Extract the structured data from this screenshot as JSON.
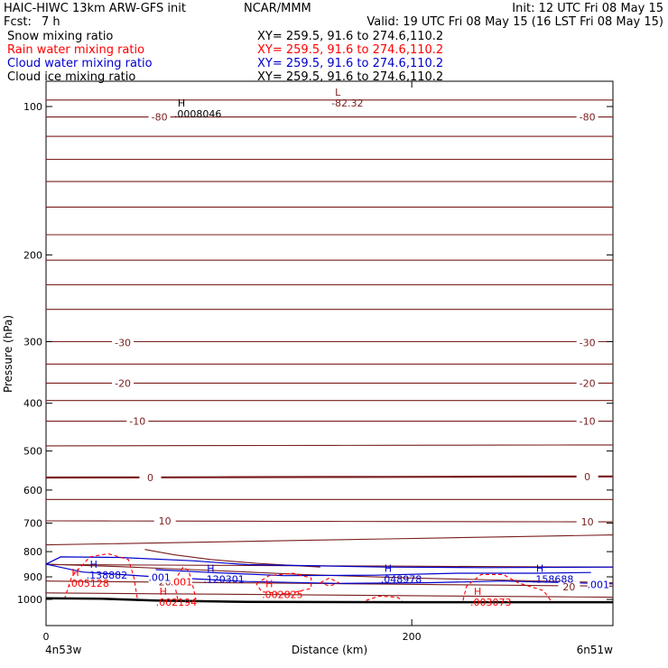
{
  "header": {
    "title": "HAIC-HIWC 13km ARW-GFS init",
    "org": "NCAR/MMM",
    "init": "Init: 12 UTC Fri 08 May 15",
    "fcst_label": "Fcst:",
    "fcst_value": "7 h",
    "valid": "Valid: 19 UTC Fri 08 May 15 (16 LST Fri 08 May 15)"
  },
  "legend": [
    {
      "name": "Snow mixing ratio",
      "xy": "XY= 259.5, 91.6 to 274.6,110.2",
      "color": "#000000"
    },
    {
      "name": "Rain water mixing ratio",
      "xy": "XY= 259.5, 91.6 to 274.6,110.2",
      "color": "#ff0000"
    },
    {
      "name": "Cloud water mixing ratio",
      "xy": "XY= 259.5, 91.6 to 274.6,110.2",
      "color": "#0000cc"
    },
    {
      "name": "Cloud ice mixing ratio",
      "xy": "XY= 259.5, 91.6 to 274.6,110.2",
      "color": "#000000"
    }
  ],
  "colors": {
    "temperature": "#7a1e1e",
    "rain": "#ff0000",
    "cloud": "#0000cc",
    "terrain": "#000000",
    "text": "#000000"
  },
  "chart_data": {
    "type": "line",
    "xlabel": "Distance (km)",
    "ylabel": "Pressure (hPa)",
    "xlim": [
      0,
      310
    ],
    "ylim": [
      1050,
      50
    ],
    "yscale": "log",
    "x_ticks": [
      0,
      200
    ],
    "y_ticks": [
      100,
      200,
      300,
      400,
      500,
      600,
      700,
      800,
      900,
      1000
    ],
    "x_endpoints": {
      "left": "4n53w",
      "right": "6n51w"
    },
    "temperature_isotherms_c": [
      -80,
      -70,
      -60,
      -50,
      -40,
      -30,
      -20,
      -10,
      0,
      10,
      20
    ],
    "isotherm_labels": [
      {
        "text": "-80",
        "x": 62,
        "p": 105
      },
      {
        "text": "-80",
        "x": 296,
        "p": 105
      },
      {
        "text": "-30",
        "x": 42,
        "p": 301
      },
      {
        "text": "-30",
        "x": 296,
        "p": 301
      },
      {
        "text": "-20",
        "x": 42,
        "p": 364
      },
      {
        "text": "-20",
        "x": 296,
        "p": 364
      },
      {
        "text": "-10",
        "x": 50,
        "p": 435
      },
      {
        "text": "-10",
        "x": 296,
        "p": 435
      },
      {
        "text": "0",
        "x": 57,
        "p": 566
      },
      {
        "text": "0",
        "x": 296,
        "p": 563
      },
      {
        "text": "10",
        "x": 65,
        "p": 693
      },
      {
        "text": "10",
        "x": 296,
        "p": 696
      },
      {
        "text": "20",
        "x": 65,
        "p": 922
      },
      {
        "text": "20",
        "x": 286,
        "p": 943
      }
    ],
    "extrema": [
      {
        "kind": "L",
        "value": "-82.32",
        "x": 158,
        "p": 95,
        "color": "#7a1e1e"
      },
      {
        "kind": "H",
        "value": ".0008046",
        "x": 72,
        "p": 100,
        "color": "#000000"
      },
      {
        "kind": "H",
        "value": ".138882",
        "x": 24,
        "p": 862,
        "color": "#0000cc"
      },
      {
        "kind": "H",
        "value": ".005128",
        "x": 14,
        "p": 897,
        "color": "#ff0000"
      },
      {
        "kind": "H",
        "value": ".120301",
        "x": 88,
        "p": 880,
        "color": "#0000cc"
      },
      {
        "kind": "H",
        "value": ".048978",
        "x": 185,
        "p": 880,
        "color": "#0000cc"
      },
      {
        "kind": "H",
        "value": ".158688",
        "x": 268,
        "p": 880,
        "color": "#0000cc"
      },
      {
        "kind": "H",
        "value": ".002825",
        "x": 120,
        "p": 945,
        "color": "#ff0000"
      },
      {
        "kind": "H",
        "value": ".002194",
        "x": 62,
        "p": 980,
        "color": "#ff0000"
      },
      {
        "kind": "H",
        "value": ".003073",
        "x": 234,
        "p": 980,
        "color": "#ff0000"
      }
    ],
    "contour_labels": [
      {
        "text": ".001",
        "x": 62,
        "p": 902,
        "color": "#0000cc"
      },
      {
        "text": ".001",
        "x": 74,
        "p": 922,
        "color": "#ff0000"
      },
      {
        "text": ".001",
        "x": 302,
        "p": 932,
        "color": "#0000cc"
      }
    ],
    "terrain": [
      {
        "x": 0,
        "p": 995
      },
      {
        "x": 30,
        "p": 997
      },
      {
        "x": 60,
        "p": 1005
      },
      {
        "x": 110,
        "p": 1012
      },
      {
        "x": 200,
        "p": 1013
      },
      {
        "x": 310,
        "p": 1013
      }
    ]
  }
}
